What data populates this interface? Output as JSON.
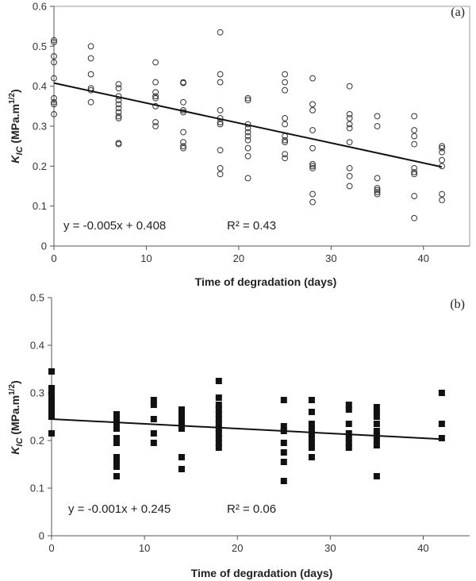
{
  "chart_data": [
    {
      "type": "scatter",
      "panel_label": "(a)",
      "marker": "open-circle",
      "xlabel": "Time of degradation (days)",
      "ylabel": {
        "main": "K",
        "sub": "IC",
        "unit": " (MPa.m",
        "sup": "1/2",
        "close": ")"
      },
      "xlim": [
        0,
        45
      ],
      "ylim": [
        0,
        0.6
      ],
      "xticks": [
        0,
        10,
        20,
        30,
        40
      ],
      "yticks": [
        0,
        0.1,
        0.2,
        0.3,
        0.4,
        0.5,
        0.6
      ],
      "ytick_labels": [
        "0",
        "0.1",
        "0.2",
        "0.3",
        "0.4",
        "0.5",
        "0.6"
      ],
      "equation": "y = -0.005x + 0.408",
      "r_squared": "R² = 0.43",
      "trendline": {
        "slope": -0.005,
        "intercept": 0.408,
        "x_range": [
          0,
          42
        ]
      },
      "points": [
        [
          0,
          0.515
        ],
        [
          0,
          0.51
        ],
        [
          0,
          0.475
        ],
        [
          0,
          0.46
        ],
        [
          0,
          0.42
        ],
        [
          0,
          0.37
        ],
        [
          0,
          0.36
        ],
        [
          0,
          0.355
        ],
        [
          0,
          0.33
        ],
        [
          4,
          0.5
        ],
        [
          4,
          0.47
        ],
        [
          4,
          0.43
        ],
        [
          4,
          0.395
        ],
        [
          4,
          0.39
        ],
        [
          4,
          0.36
        ],
        [
          7,
          0.405
        ],
        [
          7,
          0.395
        ],
        [
          7,
          0.375
        ],
        [
          7,
          0.365
        ],
        [
          7,
          0.355
        ],
        [
          7,
          0.345
        ],
        [
          7,
          0.335
        ],
        [
          7,
          0.325
        ],
        [
          7,
          0.32
        ],
        [
          7,
          0.258
        ],
        [
          7,
          0.255
        ],
        [
          11,
          0.46
        ],
        [
          11,
          0.41
        ],
        [
          11,
          0.385
        ],
        [
          11,
          0.375
        ],
        [
          11,
          0.37
        ],
        [
          11,
          0.35
        ],
        [
          11,
          0.31
        ],
        [
          11,
          0.3
        ],
        [
          14,
          0.41
        ],
        [
          14,
          0.408
        ],
        [
          14,
          0.36
        ],
        [
          14,
          0.34
        ],
        [
          14,
          0.335
        ],
        [
          14,
          0.285
        ],
        [
          14,
          0.26
        ],
        [
          14,
          0.25
        ],
        [
          14,
          0.245
        ],
        [
          18,
          0.535
        ],
        [
          18,
          0.43
        ],
        [
          18,
          0.41
        ],
        [
          18,
          0.34
        ],
        [
          18,
          0.32
        ],
        [
          18,
          0.31
        ],
        [
          18,
          0.305
        ],
        [
          18,
          0.24
        ],
        [
          18,
          0.195
        ],
        [
          18,
          0.18
        ],
        [
          21,
          0.37
        ],
        [
          21,
          0.365
        ],
        [
          21,
          0.305
        ],
        [
          21,
          0.295
        ],
        [
          21,
          0.285
        ],
        [
          21,
          0.275
        ],
        [
          21,
          0.265
        ],
        [
          21,
          0.245
        ],
        [
          21,
          0.225
        ],
        [
          21,
          0.17
        ],
        [
          25,
          0.43
        ],
        [
          25,
          0.41
        ],
        [
          25,
          0.39
        ],
        [
          25,
          0.32
        ],
        [
          25,
          0.305
        ],
        [
          25,
          0.275
        ],
        [
          25,
          0.265
        ],
        [
          25,
          0.26
        ],
        [
          25,
          0.23
        ],
        [
          25,
          0.22
        ],
        [
          28,
          0.42
        ],
        [
          28,
          0.355
        ],
        [
          28,
          0.34
        ],
        [
          28,
          0.29
        ],
        [
          28,
          0.245
        ],
        [
          28,
          0.205
        ],
        [
          28,
          0.2
        ],
        [
          28,
          0.195
        ],
        [
          28,
          0.13
        ],
        [
          28,
          0.11
        ],
        [
          32,
          0.4
        ],
        [
          32,
          0.33
        ],
        [
          32,
          0.32
        ],
        [
          32,
          0.305
        ],
        [
          32,
          0.295
        ],
        [
          32,
          0.26
        ],
        [
          32,
          0.195
        ],
        [
          32,
          0.175
        ],
        [
          32,
          0.15
        ],
        [
          35,
          0.325
        ],
        [
          35,
          0.3
        ],
        [
          35,
          0.17
        ],
        [
          35,
          0.145
        ],
        [
          35,
          0.14
        ],
        [
          35,
          0.135
        ],
        [
          35,
          0.13
        ],
        [
          39,
          0.325
        ],
        [
          39,
          0.29
        ],
        [
          39,
          0.275
        ],
        [
          39,
          0.255
        ],
        [
          39,
          0.195
        ],
        [
          39,
          0.185
        ],
        [
          39,
          0.18
        ],
        [
          39,
          0.125
        ],
        [
          39,
          0.07
        ],
        [
          42,
          0.25
        ],
        [
          42,
          0.245
        ],
        [
          42,
          0.235
        ],
        [
          42,
          0.215
        ],
        [
          42,
          0.2
        ],
        [
          42,
          0.13
        ],
        [
          42,
          0.115
        ]
      ]
    },
    {
      "type": "scatter",
      "panel_label": "(b)",
      "marker": "filled-square",
      "xlabel": "Time of degradation (days)",
      "ylabel": {
        "main": "K",
        "sub": "IC",
        "unit": " (MPa.m",
        "sup": "1/2",
        "close": ")"
      },
      "xlim": [
        0,
        45
      ],
      "ylim": [
        0,
        0.5
      ],
      "xticks": [
        0,
        10,
        20,
        30,
        40
      ],
      "yticks": [
        0,
        0.1,
        0.2,
        0.3,
        0.4,
        0.5
      ],
      "ytick_labels": [
        "0",
        "0.1",
        "0.2",
        "0.3",
        "0.4",
        "0.5"
      ],
      "equation": "y = -0.001x + 0.245",
      "r_squared": "R² = 0.06",
      "trendline": {
        "slope": -0.001,
        "intercept": 0.245,
        "x_range": [
          0,
          42
        ]
      },
      "points": [
        [
          0,
          0.345
        ],
        [
          0,
          0.31
        ],
        [
          0,
          0.305
        ],
        [
          0,
          0.295
        ],
        [
          0,
          0.285
        ],
        [
          0,
          0.275
        ],
        [
          0,
          0.265
        ],
        [
          0,
          0.26
        ],
        [
          0,
          0.25
        ],
        [
          0,
          0.215
        ],
        [
          7,
          0.255
        ],
        [
          7,
          0.245
        ],
        [
          7,
          0.235
        ],
        [
          7,
          0.225
        ],
        [
          7,
          0.205
        ],
        [
          7,
          0.195
        ],
        [
          7,
          0.165
        ],
        [
          7,
          0.155
        ],
        [
          7,
          0.145
        ],
        [
          7,
          0.125
        ],
        [
          11,
          0.285
        ],
        [
          11,
          0.275
        ],
        [
          11,
          0.245
        ],
        [
          11,
          0.215
        ],
        [
          11,
          0.195
        ],
        [
          14,
          0.265
        ],
        [
          14,
          0.255
        ],
        [
          14,
          0.245
        ],
        [
          14,
          0.235
        ],
        [
          14,
          0.225
        ],
        [
          14,
          0.165
        ],
        [
          14,
          0.14
        ],
        [
          18,
          0.325
        ],
        [
          18,
          0.29
        ],
        [
          18,
          0.275
        ],
        [
          18,
          0.265
        ],
        [
          18,
          0.255
        ],
        [
          18,
          0.245
        ],
        [
          18,
          0.235
        ],
        [
          18,
          0.225
        ],
        [
          18,
          0.215
        ],
        [
          18,
          0.205
        ],
        [
          18,
          0.195
        ],
        [
          18,
          0.185
        ],
        [
          25,
          0.285
        ],
        [
          25,
          0.23
        ],
        [
          25,
          0.22
        ],
        [
          25,
          0.195
        ],
        [
          25,
          0.175
        ],
        [
          25,
          0.155
        ],
        [
          25,
          0.115
        ],
        [
          28,
          0.285
        ],
        [
          28,
          0.26
        ],
        [
          28,
          0.235
        ],
        [
          28,
          0.225
        ],
        [
          28,
          0.215
        ],
        [
          28,
          0.205
        ],
        [
          28,
          0.195
        ],
        [
          28,
          0.185
        ],
        [
          28,
          0.165
        ],
        [
          32,
          0.275
        ],
        [
          32,
          0.265
        ],
        [
          32,
          0.235
        ],
        [
          32,
          0.215
        ],
        [
          32,
          0.205
        ],
        [
          32,
          0.195
        ],
        [
          32,
          0.185
        ],
        [
          35,
          0.27
        ],
        [
          35,
          0.26
        ],
        [
          35,
          0.25
        ],
        [
          35,
          0.235
        ],
        [
          35,
          0.22
        ],
        [
          35,
          0.21
        ],
        [
          35,
          0.2
        ],
        [
          35,
          0.19
        ],
        [
          35,
          0.125
        ],
        [
          42,
          0.3
        ],
        [
          42,
          0.235
        ],
        [
          42,
          0.205
        ]
      ]
    }
  ]
}
